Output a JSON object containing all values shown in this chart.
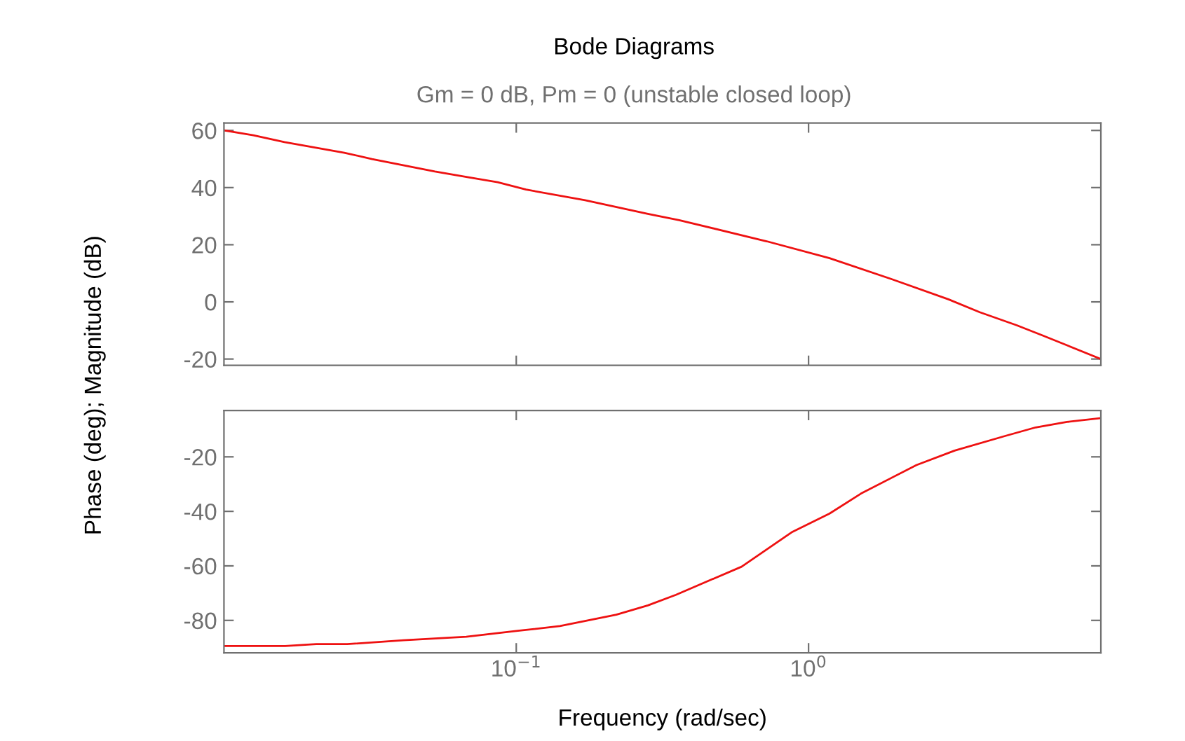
{
  "chart_data": [
    {
      "type": "line",
      "title": "Bode Diagrams",
      "subtitle": "Gm = 0 dB, Pm = 0 (unstable closed loop)",
      "ylabel": "Phase (deg); Magnitude (dB)",
      "log": "x",
      "xlim": [
        0.01,
        10
      ],
      "ylim": [
        -22.2,
        62.6
      ],
      "yticks": [
        -20,
        0,
        20,
        40,
        60
      ],
      "tick_labels": "y",
      "grid": false,
      "series": [
        {
          "color": "#ee1111",
          "x": [
            0.01,
            0.0126,
            0.0161,
            0.0258,
            0.0321,
            0.0527,
            0.0675,
            0.0863,
            0.108,
            0.172,
            0.282,
            0.361,
            0.719,
            1.18,
            1.93,
            3.01,
            3.85,
            5.16,
            6.3,
            7.66,
            10
          ],
          "values": [
            60,
            58.3,
            55.9,
            52.2,
            50.0,
            45.6,
            43.7,
            41.9,
            39.3,
            35.6,
            30.8,
            28.6,
            21.2,
            15.3,
            7.9,
            0.9,
            -3.6,
            -8.2,
            -11.7,
            -15.2,
            -20
          ]
        }
      ]
    },
    {
      "type": "line",
      "xlabel": "Frequency (rad/sec)",
      "log": "x",
      "xlim": [
        0.01,
        10
      ],
      "xticks": [
        {
          "value": 0.1,
          "label": "10$^{−1}$"
        },
        {
          "value": 1,
          "label": "10$^{0}$"
        }
      ],
      "ylim": [
        -91.9,
        -3
      ],
      "yticks": [
        -80,
        -60,
        -40,
        -20
      ],
      "grid": false,
      "series": [
        {
          "color": "#ee1111",
          "x": [
            0.01,
            0.0162,
            0.0207,
            0.0264,
            0.0412,
            0.0675,
            0.1,
            0.141,
            0.22,
            0.282,
            0.352,
            0.59,
            0.875,
            1.18,
            1.51,
            2.34,
            3.16,
            4.68,
            5.98,
            7.66,
            10
          ],
          "values": [
            -89.4,
            -89.4,
            -88.7,
            -88.7,
            -87.3,
            -86.0,
            -83.9,
            -82.1,
            -77.9,
            -74.5,
            -70.6,
            -60.3,
            -47.7,
            -40.8,
            -33.5,
            -23.0,
            -17.7,
            -12.4,
            -9.2,
            -7.2,
            -5.8
          ]
        }
      ]
    }
  ]
}
